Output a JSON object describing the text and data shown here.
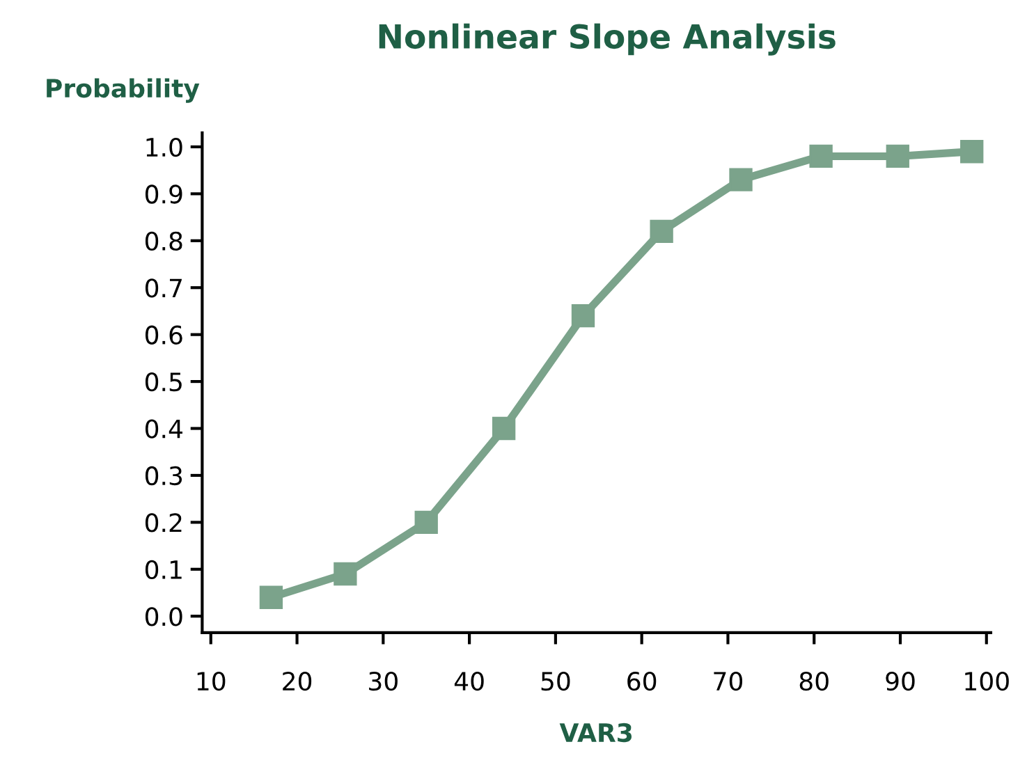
{
  "chart_data": {
    "type": "line",
    "title": "Nonlinear Slope Analysis",
    "xlabel": "VAR3",
    "ylabel": "Probability",
    "x": [
      17,
      25.6,
      35,
      44,
      53.2,
      62.3,
      71.5,
      80.8,
      89.7,
      98.3
    ],
    "series": [
      {
        "color": "#7ba38b",
        "values": [
          0.04,
          0.09,
          0.2,
          0.4,
          0.64,
          0.82,
          0.93,
          0.98,
          0.98,
          0.99
        ]
      }
    ],
    "marker": "square",
    "line_style": "solid",
    "grid": false,
    "xlim": [
      9,
      100.5
    ],
    "ylim": [
      -0.035,
      1.03
    ],
    "xticks": [
      10,
      20,
      30,
      40,
      50,
      60,
      70,
      80,
      90,
      100
    ],
    "yticks": [
      {
        "value": 0,
        "label": "0.0"
      },
      0.1,
      0.2,
      0.3,
      0.4,
      0.5,
      0.6,
      0.7,
      0.8,
      0.9,
      {
        "value": 1,
        "label": "1.0"
      }
    ]
  }
}
